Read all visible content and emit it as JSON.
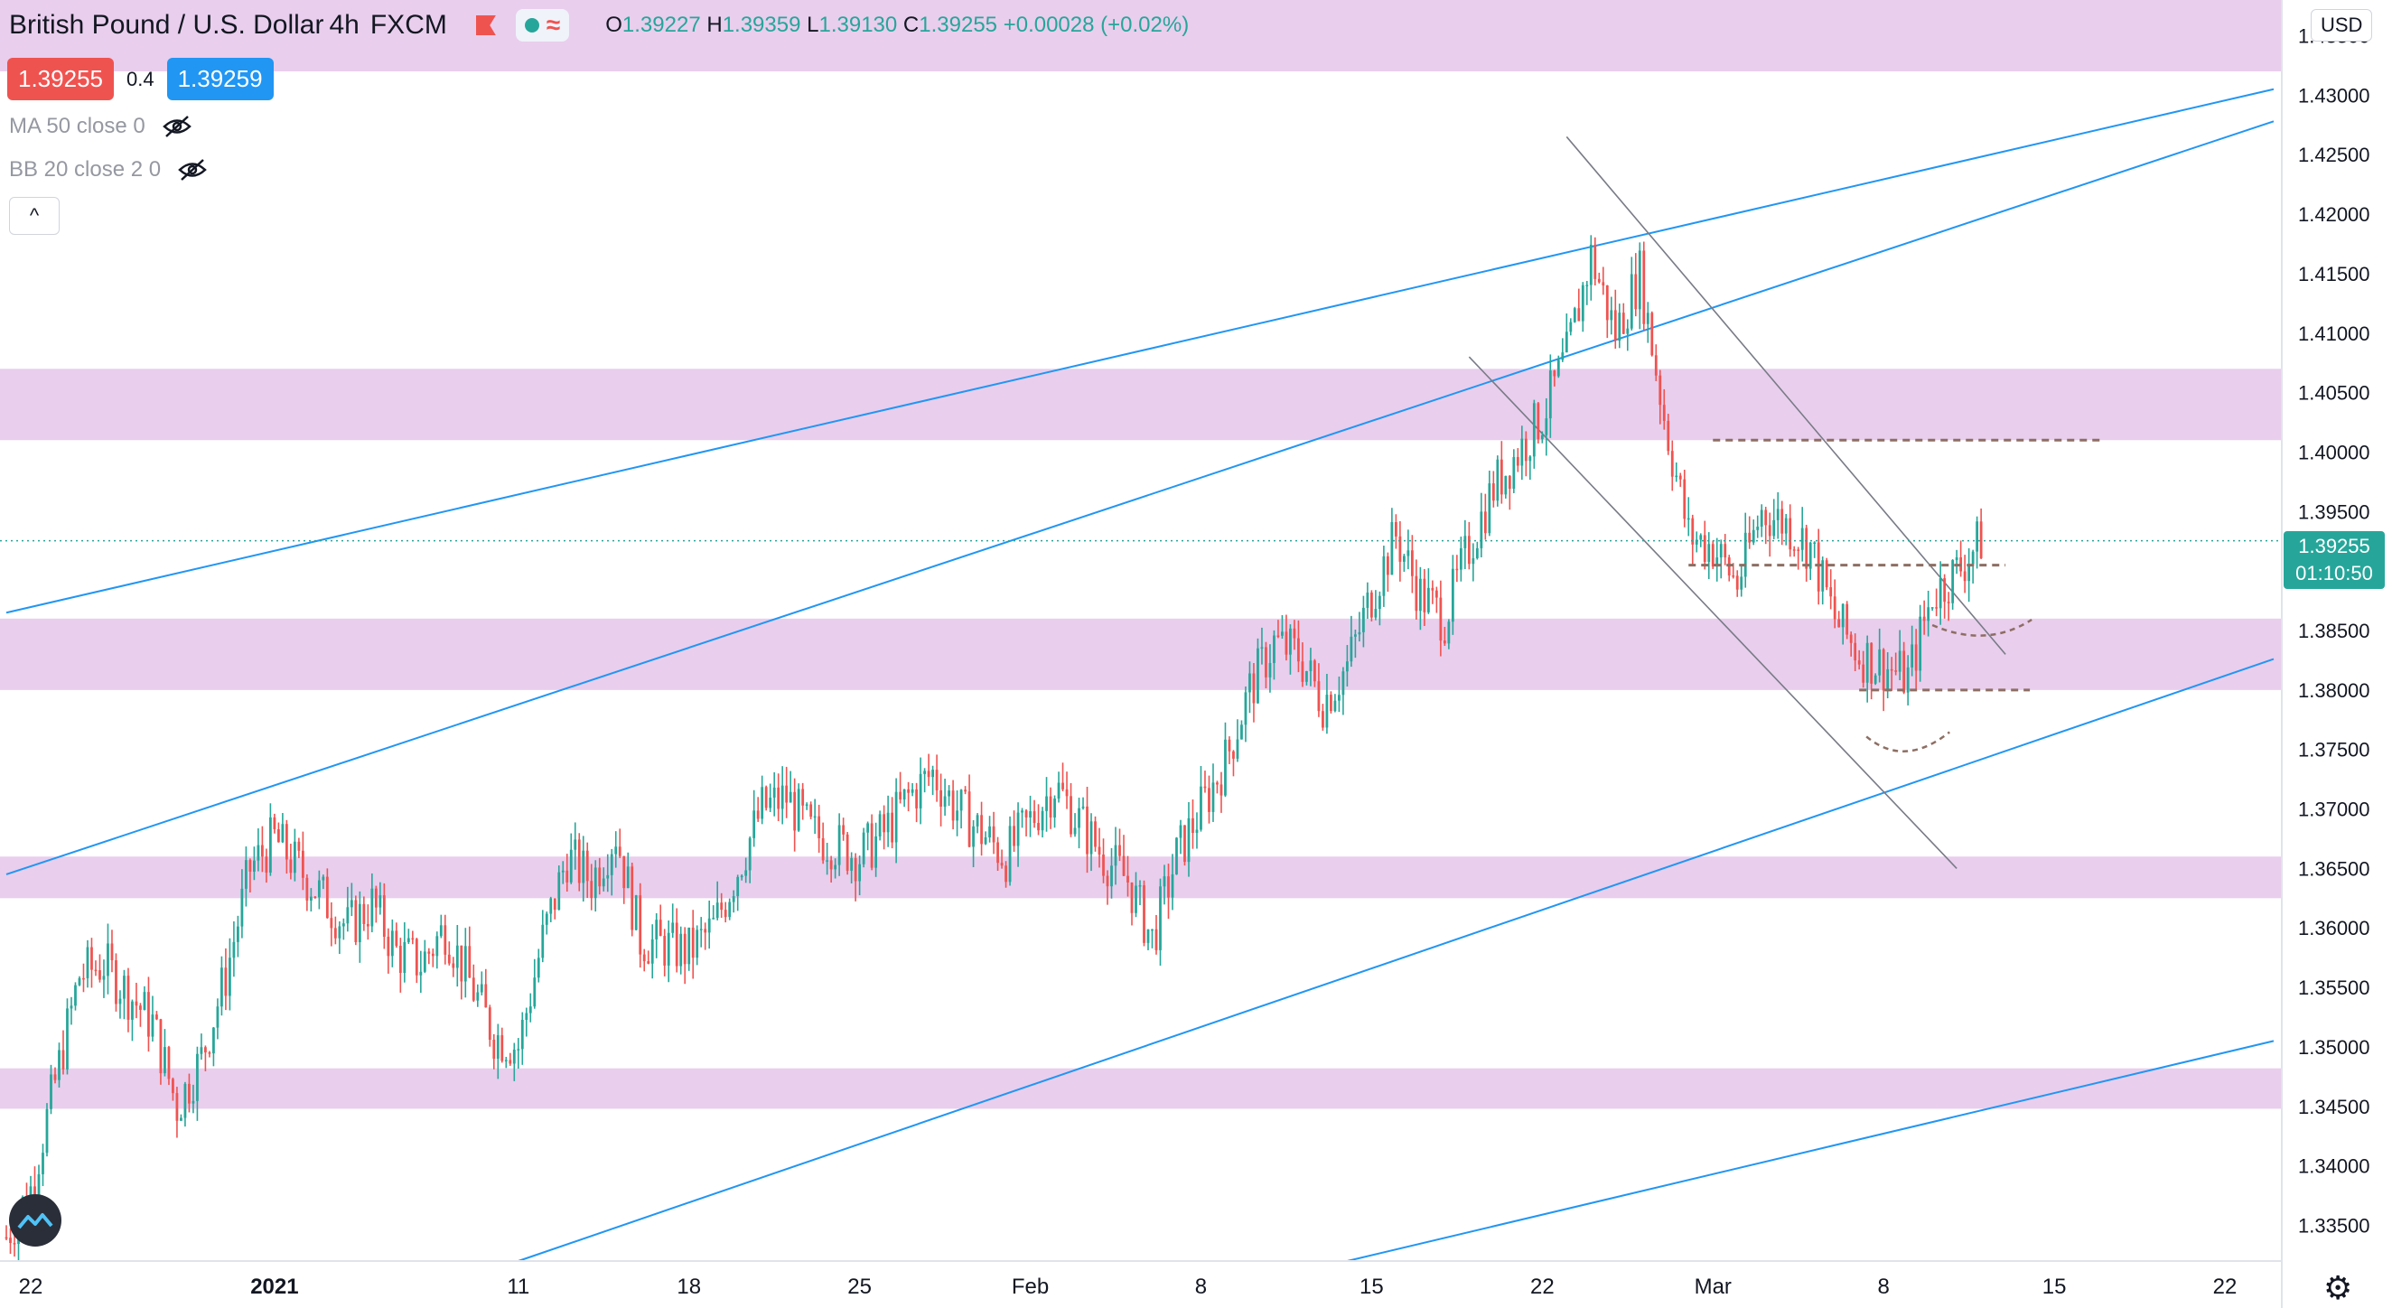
{
  "header": {
    "symbol": "British Pound / U.S. Dollar",
    "interval": "4h",
    "exchange": "FXCM",
    "ohlc": {
      "o_label": "O",
      "o": "1.39227",
      "h_label": "H",
      "h": "1.39359",
      "l_label": "L",
      "l": "1.39130",
      "c_label": "C",
      "c": "1.39255",
      "change": "+0.00028 (+0.02%)"
    },
    "wave_glyph": "≈"
  },
  "prices": {
    "sell": "1.39255",
    "spread": "0.4",
    "buy": "1.39259"
  },
  "indicators": [
    {
      "label": "MA 50 close 0",
      "icon": "eye-off-icon"
    },
    {
      "label": "BB 20 close 2 0",
      "icon": "eye-off-icon"
    }
  ],
  "collapse_glyph": "^",
  "currency": "USD",
  "last_price": {
    "price": "1.39255",
    "countdown": "01:10:50"
  },
  "settings_glyph": "⚙",
  "colors": {
    "bull": "#26a69a",
    "bear": "#ef5350",
    "zone": "#e1bee7",
    "trendline": "#2196f3",
    "channel": "#787b86",
    "level": "#8d6e63"
  },
  "chart_data": {
    "type": "candlestick",
    "title": "British Pound / U.S. Dollar 4h FXCM",
    "y_axis": {
      "unit": "USD",
      "range": [
        1.332,
        1.438
      ],
      "ticks": [
        "1.43500",
        "1.43000",
        "1.42500",
        "1.42000",
        "1.41500",
        "1.41000",
        "1.40500",
        "1.40000",
        "1.39500",
        "1.39000",
        "1.38500",
        "1.38000",
        "1.37500",
        "1.37000",
        "1.36500",
        "1.36000",
        "1.35500",
        "1.35000",
        "1.34500",
        "1.34000",
        "1.33500"
      ]
    },
    "x_axis": {
      "range": [
        "2020-12-22",
        "2021-03-24"
      ],
      "ticks": [
        {
          "label": "22",
          "date": "2020-12-22"
        },
        {
          "label": "2021",
          "date": "2021-01-01"
        },
        {
          "label": "11",
          "date": "2021-01-11"
        },
        {
          "label": "18",
          "date": "2021-01-18"
        },
        {
          "label": "25",
          "date": "2021-01-25"
        },
        {
          "label": "Feb",
          "date": "2021-02-01"
        },
        {
          "label": "8",
          "date": "2021-02-08"
        },
        {
          "label": "15",
          "date": "2021-02-15"
        },
        {
          "label": "22",
          "date": "2021-02-22"
        },
        {
          "label": "Mar",
          "date": "2021-03-01"
        },
        {
          "label": "8",
          "date": "2021-03-08"
        },
        {
          "label": "15",
          "date": "2021-03-15"
        },
        {
          "label": "22",
          "date": "2021-03-22"
        }
      ]
    },
    "close_path": [
      {
        "date": "2020-12-21",
        "close": 1.334
      },
      {
        "date": "2020-12-22",
        "close": 1.338
      },
      {
        "date": "2020-12-23",
        "close": 1.347
      },
      {
        "date": "2020-12-24",
        "close": 1.356
      },
      {
        "date": "2020-12-25",
        "close": 1.357
      },
      {
        "date": "2020-12-27",
        "close": 1.352
      },
      {
        "date": "2020-12-28",
        "close": 1.345
      },
      {
        "date": "2020-12-29",
        "close": 1.349
      },
      {
        "date": "2020-12-30",
        "close": 1.356
      },
      {
        "date": "2020-12-31",
        "close": 1.365
      },
      {
        "date": "2021-01-01",
        "close": 1.3675
      },
      {
        "date": "2021-01-04",
        "close": 1.36
      },
      {
        "date": "2021-01-05",
        "close": 1.362
      },
      {
        "date": "2021-01-06",
        "close": 1.358
      },
      {
        "date": "2021-01-07",
        "close": 1.357
      },
      {
        "date": "2021-01-08",
        "close": 1.36
      },
      {
        "date": "2021-01-10",
        "close": 1.351
      },
      {
        "date": "2021-01-11",
        "close": 1.35
      },
      {
        "date": "2021-01-12",
        "close": 1.359
      },
      {
        "date": "2021-01-13",
        "close": 1.366
      },
      {
        "date": "2021-01-14",
        "close": 1.364
      },
      {
        "date": "2021-01-15",
        "close": 1.368
      },
      {
        "date": "2021-01-16",
        "close": 1.359
      },
      {
        "date": "2021-01-18",
        "close": 1.358
      },
      {
        "date": "2021-01-19",
        "close": 1.36
      },
      {
        "date": "2021-01-20",
        "close": 1.365
      },
      {
        "date": "2021-01-21",
        "close": 1.37
      },
      {
        "date": "2021-01-22",
        "close": 1.371
      },
      {
        "date": "2021-01-23",
        "close": 1.368
      },
      {
        "date": "2021-01-25",
        "close": 1.366
      },
      {
        "date": "2021-01-26",
        "close": 1.368
      },
      {
        "date": "2021-01-27",
        "close": 1.371
      },
      {
        "date": "2021-01-28",
        "close": 1.373
      },
      {
        "date": "2021-01-29",
        "close": 1.37
      },
      {
        "date": "2021-01-31",
        "close": 1.366
      },
      {
        "date": "2021-02-01",
        "close": 1.369
      },
      {
        "date": "2021-02-02",
        "close": 1.372
      },
      {
        "date": "2021-02-03",
        "close": 1.369
      },
      {
        "date": "2021-02-04",
        "close": 1.366
      },
      {
        "date": "2021-02-05",
        "close": 1.364
      },
      {
        "date": "2021-02-06",
        "close": 1.359
      },
      {
        "date": "2021-02-07",
        "close": 1.366
      },
      {
        "date": "2021-02-08",
        "close": 1.37
      },
      {
        "date": "2021-02-09",
        "close": 1.374
      },
      {
        "date": "2021-02-10",
        "close": 1.38
      },
      {
        "date": "2021-02-11",
        "close": 1.384
      },
      {
        "date": "2021-02-12",
        "close": 1.383
      },
      {
        "date": "2021-02-13",
        "close": 1.379
      },
      {
        "date": "2021-02-14",
        "close": 1.382
      },
      {
        "date": "2021-02-15",
        "close": 1.388
      },
      {
        "date": "2021-02-16",
        "close": 1.393
      },
      {
        "date": "2021-02-17",
        "close": 1.388
      },
      {
        "date": "2021-02-18",
        "close": 1.386
      },
      {
        "date": "2021-02-19",
        "close": 1.392
      },
      {
        "date": "2021-02-20",
        "close": 1.397
      },
      {
        "date": "2021-02-21",
        "close": 1.4
      },
      {
        "date": "2021-02-22",
        "close": 1.403
      },
      {
        "date": "2021-02-23",
        "close": 1.408
      },
      {
        "date": "2021-02-24",
        "close": 1.4165
      },
      {
        "date": "2021-02-25",
        "close": 1.41
      },
      {
        "date": "2021-02-26",
        "close": 1.415
      },
      {
        "date": "2021-02-27",
        "close": 1.403
      },
      {
        "date": "2021-02-28",
        "close": 1.393
      },
      {
        "date": "2021-03-01",
        "close": 1.392
      },
      {
        "date": "2021-03-02",
        "close": 1.389
      },
      {
        "date": "2021-03-03",
        "close": 1.395
      },
      {
        "date": "2021-03-04",
        "close": 1.394
      },
      {
        "date": "2021-03-05",
        "close": 1.392
      },
      {
        "date": "2021-03-06",
        "close": 1.386
      },
      {
        "date": "2021-03-07",
        "close": 1.383
      },
      {
        "date": "2021-03-08",
        "close": 1.382
      },
      {
        "date": "2021-03-09",
        "close": 1.381
      },
      {
        "date": "2021-03-10",
        "close": 1.388
      },
      {
        "date": "2021-03-11",
        "close": 1.39
      },
      {
        "date": "2021-03-12",
        "close": 1.3926
      }
    ],
    "zones": [
      {
        "from": 1.432,
        "to": 1.438
      },
      {
        "from": 1.401,
        "to": 1.407
      },
      {
        "from": 1.38,
        "to": 1.386
      },
      {
        "from": 1.3625,
        "to": 1.366
      },
      {
        "from": 1.3448,
        "to": 1.3482
      }
    ],
    "trendlines": [
      {
        "from": {
          "date": "2020-12-21",
          "price": 1.3865
        },
        "to": {
          "date": "2021-03-24",
          "price": 1.4305
        }
      },
      {
        "from": {
          "date": "2020-12-21",
          "price": 1.3645
        },
        "to": {
          "date": "2021-03-24",
          "price": 1.4278
        }
      },
      {
        "from": {
          "date": "2021-01-11",
          "price": 1.332
        },
        "to": {
          "date": "2021-03-24",
          "price": 1.3826
        }
      },
      {
        "from": {
          "date": "2021-02-14",
          "price": 1.332
        },
        "to": {
          "date": "2021-03-24",
          "price": 1.3505
        }
      }
    ],
    "channel": [
      {
        "from": {
          "date": "2021-02-23",
          "price": 1.4265
        },
        "to": {
          "date": "2021-03-13",
          "price": 1.383
        }
      },
      {
        "from": {
          "date": "2021-02-19",
          "price": 1.408
        },
        "to": {
          "date": "2021-03-11",
          "price": 1.365
        }
      }
    ],
    "levels": [
      {
        "price": 1.401,
        "from": "2021-03-01",
        "to": "2021-03-17"
      },
      {
        "price": 1.3905,
        "from": "2021-02-28",
        "to": "2021-03-13"
      },
      {
        "price": 1.38,
        "from": "2021-03-07",
        "to": "2021-03-14"
      }
    ],
    "last_close": 1.39255
  }
}
